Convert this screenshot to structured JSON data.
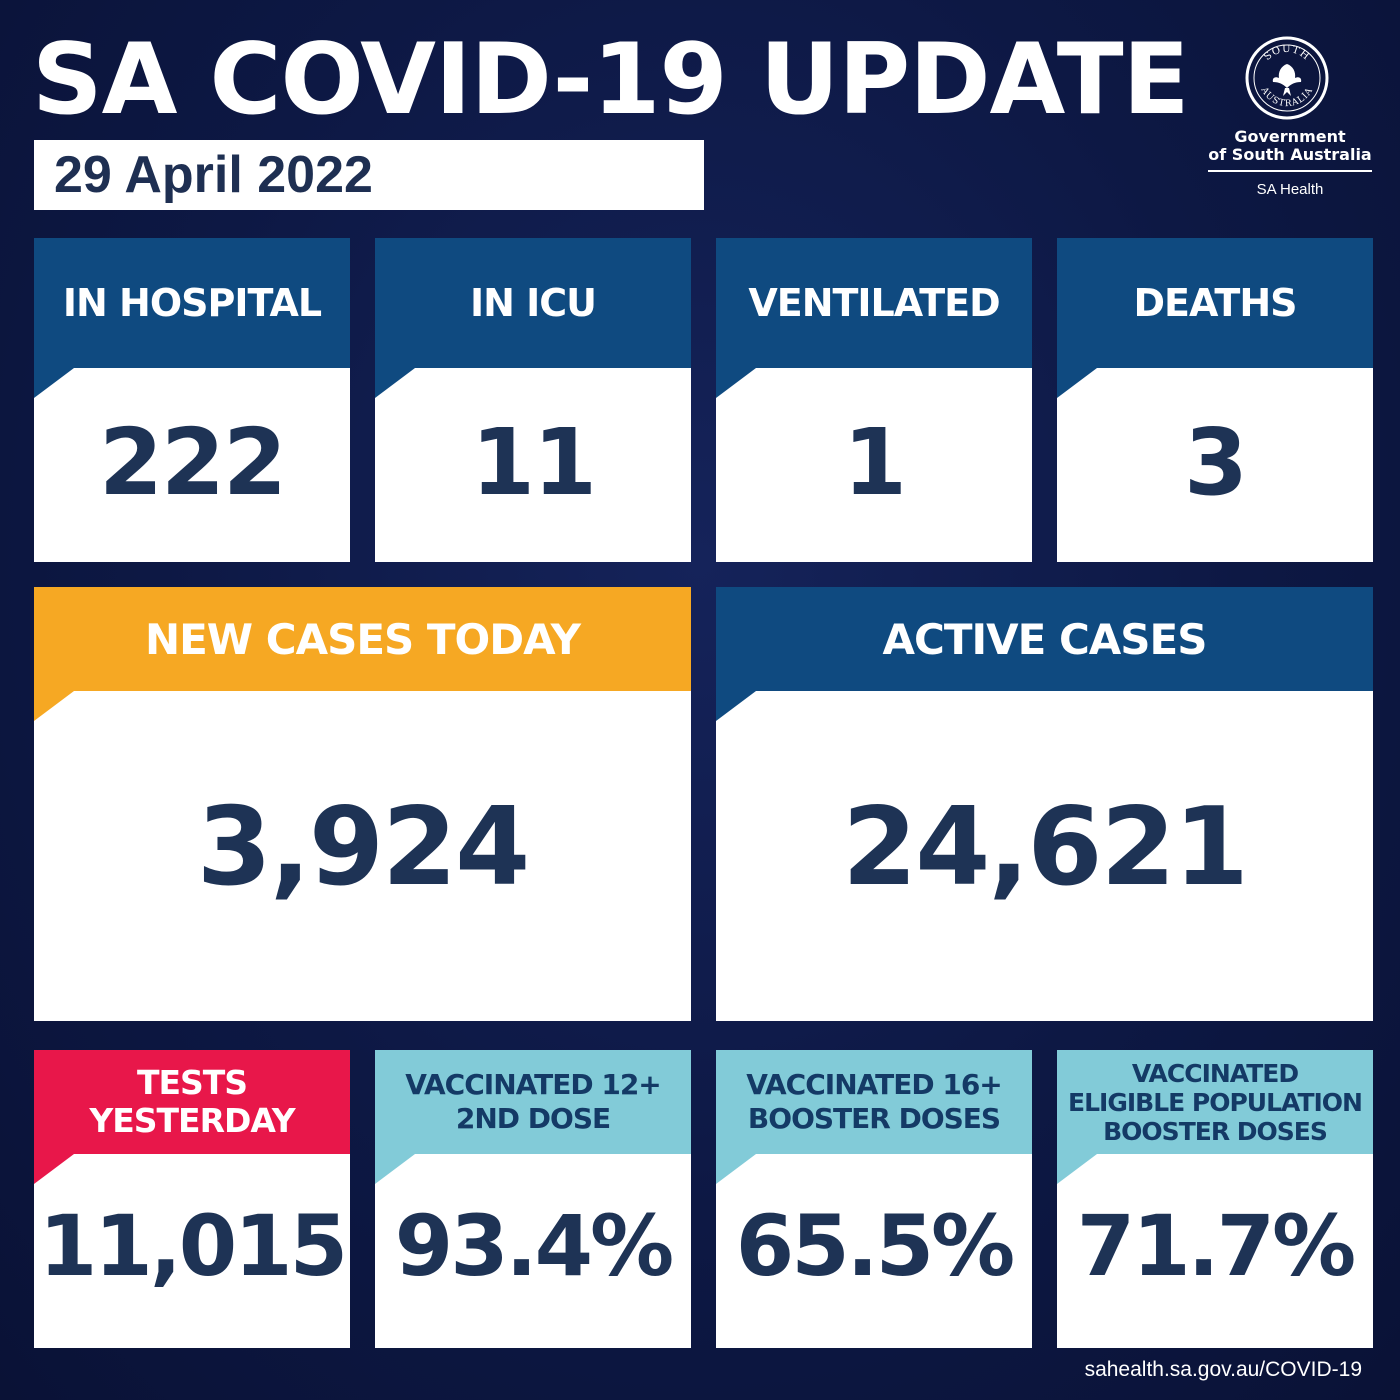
{
  "header": {
    "title": "SA COVID-19 UPDATE",
    "date": "29 April 2022"
  },
  "logo": {
    "seal_icon": "south-australia-seal-icon",
    "seal_text_top": "SOUTH",
    "seal_text_bottom": "AUSTRALIA",
    "government_line1": "Government",
    "government_line2": "of South Australia",
    "department": "SA Health"
  },
  "colors": {
    "background": "#0d1844",
    "header_navy": "#0f4a80",
    "header_orange": "#f6a823",
    "header_red": "#e8174a",
    "header_cyan": "#82cbd8",
    "value_text": "#1e3355"
  },
  "top_row": [
    {
      "label": "IN HOSPITAL",
      "value": "222"
    },
    {
      "label": "IN ICU",
      "value": "11"
    },
    {
      "label": "VENTILATED",
      "value": "1"
    },
    {
      "label": "DEATHS",
      "value": "3"
    }
  ],
  "middle_row": [
    {
      "label": "NEW CASES TODAY",
      "value": "3,924"
    },
    {
      "label": "ACTIVE CASES",
      "value": "24,621"
    }
  ],
  "bottom_row": [
    {
      "label_lines": [
        "TESTS",
        "YESTERDAY"
      ],
      "value": "11,015"
    },
    {
      "label_lines": [
        "VACCINATED 12+",
        "2ND DOSE"
      ],
      "value": "93.4%"
    },
    {
      "label_lines": [
        "VACCINATED 16+",
        "BOOSTER DOSES"
      ],
      "value": "65.5%"
    },
    {
      "label_lines": [
        "VACCINATED",
        "ELIGIBLE POPULATION",
        "BOOSTER DOSES"
      ],
      "value": "71.7%"
    }
  ],
  "footer": {
    "url": "sahealth.sa.gov.au/COVID-19"
  }
}
